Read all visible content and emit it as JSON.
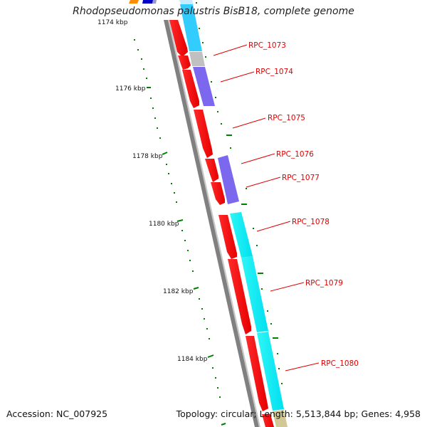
{
  "title": "Rhodopseudomonas palustris BisB18, complete genome",
  "footer": {
    "accession": "Accession: NC_007925",
    "summary": "Topology: circular; Length: 5,513,844 bp; Genes: 4,958"
  },
  "colors": {
    "cds_forward": "#ff0000",
    "backbone": "#808080",
    "ruler_tick": "#008000",
    "label_text": "#e00000",
    "feature_cyan": "#00ffff",
    "feature_light_blue": "#33ccff",
    "feature_purple": "#7b68ee",
    "feature_gray": "#c0c0c0"
  },
  "scale_labels": [
    "1174 kbp",
    "1176 kbp",
    "1178 kbp",
    "1180 kbp",
    "1182 kbp",
    "1184 kbp"
  ],
  "genes": [
    "RPC_1073",
    "RPC_1074",
    "RPC_1075",
    "RPC_1076",
    "RPC_1077",
    "RPC_1078",
    "RPC_1079",
    "RPC_1080"
  ]
}
